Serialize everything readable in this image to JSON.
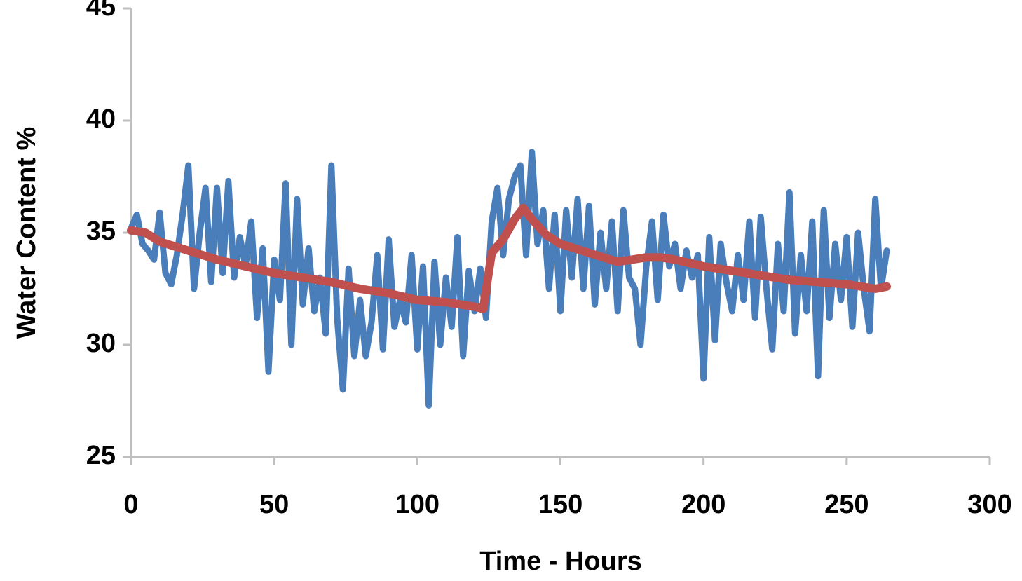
{
  "chart_data": {
    "type": "line",
    "xlabel": "Time - Hours",
    "ylabel": "Water Content %",
    "xlim": [
      0,
      300
    ],
    "xticks": [
      0,
      50,
      100,
      150,
      200,
      250,
      300
    ],
    "ylim": [
      25,
      45
    ],
    "yticks": [
      25,
      30,
      35,
      40,
      45
    ],
    "series": [
      {
        "color": "#4a7ebb",
        "x": [
          0,
          2,
          4,
          6,
          8,
          10,
          12,
          14,
          16,
          18,
          20,
          22,
          24,
          26,
          28,
          30,
          32,
          34,
          36,
          38,
          40,
          42,
          44,
          46,
          48,
          50,
          52,
          54,
          56,
          58,
          60,
          62,
          64,
          66,
          68,
          70,
          72,
          74,
          76,
          78,
          80,
          82,
          84,
          86,
          88,
          90,
          92,
          94,
          96,
          98,
          100,
          102,
          104,
          106,
          108,
          110,
          112,
          114,
          116,
          118,
          120,
          122,
          124,
          126,
          128,
          130,
          132,
          134,
          136,
          138,
          140,
          142,
          144,
          146,
          148,
          150,
          152,
          154,
          156,
          158,
          160,
          162,
          164,
          166,
          168,
          170,
          172,
          174,
          176,
          178,
          180,
          182,
          184,
          186,
          188,
          190,
          192,
          194,
          196,
          198,
          200,
          202,
          204,
          206,
          208,
          210,
          212,
          214,
          216,
          218,
          220,
          222,
          224,
          226,
          228,
          230,
          232,
          234,
          236,
          238,
          240,
          242,
          244,
          246,
          248,
          250,
          252,
          254,
          256,
          258,
          260,
          262,
          264
        ],
        "values": [
          35.2,
          35.8,
          34.5,
          34.2,
          33.8,
          35.9,
          33.2,
          32.7,
          34.0,
          35.8,
          38.0,
          32.5,
          35.0,
          37.0,
          32.8,
          37.0,
          33.2,
          37.3,
          33.0,
          34.8,
          33.5,
          35.5,
          31.2,
          34.3,
          28.8,
          33.8,
          32.0,
          37.2,
          30.0,
          36.5,
          31.8,
          34.3,
          31.5,
          33.0,
          30.5,
          38.0,
          31.2,
          28.0,
          33.4,
          29.5,
          32.0,
          29.5,
          31.0,
          34.0,
          29.8,
          34.7,
          30.8,
          32.0,
          31.0,
          34.0,
          29.8,
          33.5,
          27.3,
          33.7,
          30.0,
          33.0,
          30.8,
          34.8,
          29.5,
          33.3,
          31.5,
          33.4,
          31.2,
          35.5,
          37.0,
          34.0,
          36.5,
          37.5,
          38.0,
          34.0,
          38.6,
          34.5,
          36.0,
          32.5,
          35.8,
          31.5,
          36.0,
          33.0,
          36.5,
          32.5,
          36.2,
          31.8,
          35.0,
          32.5,
          35.5,
          31.5,
          36.0,
          33.0,
          32.5,
          30.0,
          33.5,
          35.5,
          32.0,
          35.8,
          33.5,
          34.5,
          32.5,
          34.2,
          33.0,
          34.0,
          28.5,
          34.8,
          30.2,
          34.5,
          32.8,
          31.5,
          34.0,
          32.0,
          35.5,
          31.2,
          35.7,
          32.5,
          29.8,
          34.5,
          31.5,
          36.8,
          30.5,
          34.0,
          31.5,
          35.5,
          28.6,
          36.0,
          31.2,
          34.5,
          32.0,
          34.8,
          30.8,
          35.0,
          32.5,
          30.6,
          36.5,
          32.5,
          34.2
        ]
      },
      {
        "color": "#c0504d",
        "x": [
          0,
          5,
          10,
          20,
          30,
          40,
          50,
          60,
          70,
          80,
          90,
          100,
          110,
          120,
          123,
          126,
          130,
          134,
          137,
          140,
          145,
          150,
          160,
          170,
          175,
          180,
          185,
          190,
          200,
          210,
          220,
          230,
          240,
          250,
          260,
          264
        ],
        "values": [
          35.1,
          35.0,
          34.6,
          34.2,
          33.8,
          33.5,
          33.2,
          33.0,
          32.8,
          32.5,
          32.3,
          32.0,
          31.9,
          31.7,
          31.6,
          34.1,
          34.7,
          35.6,
          36.1,
          35.6,
          34.9,
          34.5,
          34.1,
          33.7,
          33.8,
          33.9,
          33.9,
          33.8,
          33.5,
          33.3,
          33.1,
          32.9,
          32.8,
          32.7,
          32.5,
          32.6
        ]
      }
    ]
  }
}
